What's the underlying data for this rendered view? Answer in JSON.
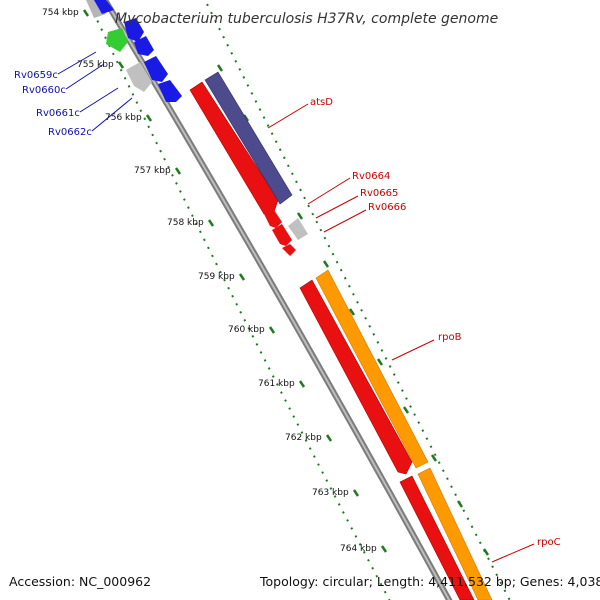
{
  "title": "Mycobacterium tuberculosis H37Rv, complete genome",
  "footer": {
    "accession": "Accession: NC_000962",
    "topology": "Topology: circular; Length: 4,411,532 bp; Genes: 4,038"
  },
  "ticks": [
    {
      "label": "754 kbp",
      "kbp": 754
    },
    {
      "label": "755 kbp",
      "kbp": 755
    },
    {
      "label": "756 kbp",
      "kbp": 756
    },
    {
      "label": "757 kbp",
      "kbp": 757
    },
    {
      "label": "758 kbp",
      "kbp": 758
    },
    {
      "label": "759 kbp",
      "kbp": 759
    },
    {
      "label": "760 kbp",
      "kbp": 760
    },
    {
      "label": "761 kbp",
      "kbp": 761
    },
    {
      "label": "762 kbp",
      "kbp": 762
    },
    {
      "label": "763 kbp",
      "kbp": 763
    },
    {
      "label": "764 kbp",
      "kbp": 764
    }
  ],
  "genes": [
    {
      "name": "Rv0659c",
      "strand": "reverse",
      "color": "#2f5fd6",
      "start_kbp": 755.05,
      "end_kbp": 755.45
    },
    {
      "name": "Rv0660c",
      "strand": "reverse",
      "color": "#2f5fd6",
      "start_kbp": 755.5,
      "end_kbp": 755.8
    },
    {
      "name": "Rv0661c",
      "strand": "reverse",
      "color": "#2f5fd6",
      "start_kbp": 755.9,
      "end_kbp": 756.25
    },
    {
      "name": "Rv0662c",
      "strand": "reverse",
      "color": "#2f5fd6",
      "start_kbp": 756.3,
      "end_kbp": 756.6
    },
    {
      "name": "atsD",
      "strand": "forward",
      "color": "#e01010",
      "start_kbp": 756.7,
      "end_kbp": 758.9
    },
    {
      "name": "Rv0664",
      "strand": "forward",
      "color": "#e01010",
      "start_kbp": 758.95,
      "end_kbp": 759.2
    },
    {
      "name": "Rv0665",
      "strand": "forward",
      "color": "#e01010",
      "start_kbp": 759.25,
      "end_kbp": 759.5
    },
    {
      "name": "Rv0666",
      "strand": "forward",
      "color": "#e01010",
      "start_kbp": 759.55,
      "end_kbp": 759.7
    },
    {
      "name": "rpoB",
      "strand": "forward",
      "color": "#e01010",
      "start_kbp": 759.8,
      "end_kbp": 763.3
    },
    {
      "name": "rpoC",
      "strand": "forward",
      "color": "#e01010",
      "start_kbp": 763.4,
      "end_kbp": 765.8
    }
  ],
  "colors": {
    "backbone": "#8c8c8c",
    "forward_cds": "#e01010",
    "cog": "#ff9900",
    "cog_dark": "#4b4a8c",
    "reverse_cds": "#1a1ae6",
    "reverse_cog_green": "#33cc33",
    "other": "#c0c0c0",
    "tick": "#207a20",
    "forward_label": "#cc0000",
    "reverse_label": "#1010aa"
  }
}
